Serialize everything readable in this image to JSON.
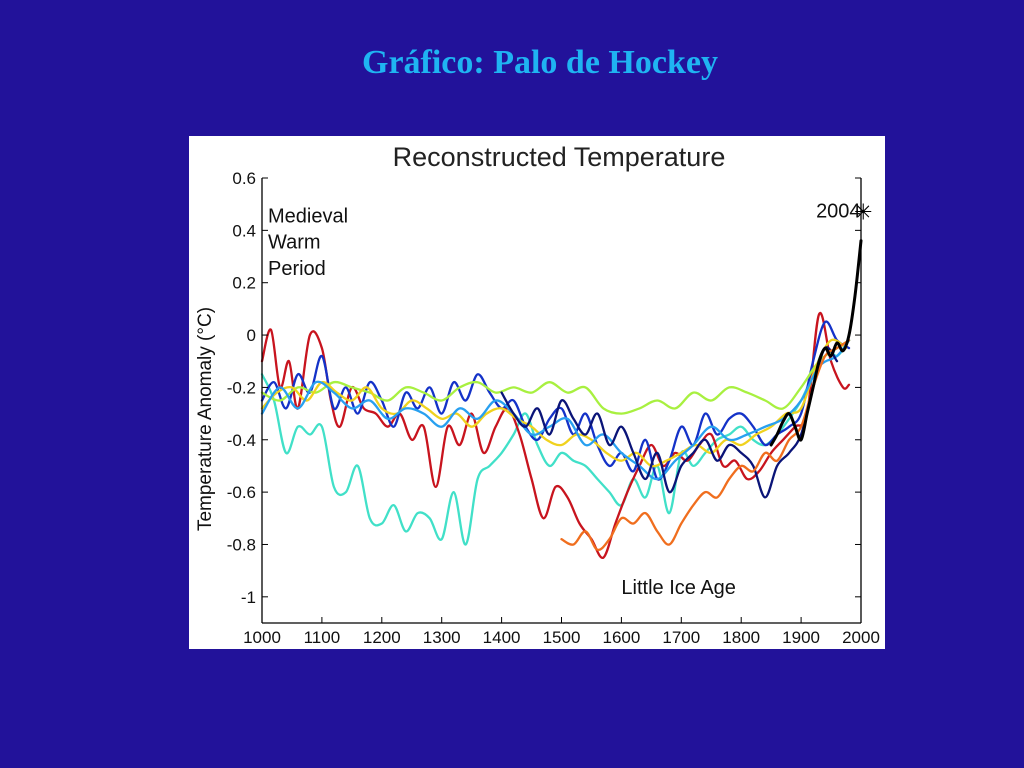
{
  "slide": {
    "title": "Gráfico: Palo de Hockey"
  },
  "chart_data": {
    "type": "line",
    "title": "Reconstructed Temperature",
    "xlabel": "",
    "ylabel": "Temperature Anomaly (°C)",
    "xlim": [
      1000,
      2000
    ],
    "ylim": [
      -1.1,
      0.6
    ],
    "xticks": [
      1000,
      1100,
      1200,
      1300,
      1400,
      1500,
      1600,
      1700,
      1800,
      1900,
      2000
    ],
    "yticks": [
      0.6,
      0.4,
      0.2,
      0,
      -0.2,
      -0.4,
      -0.6,
      -0.8,
      -1
    ],
    "grid": false,
    "annotations": [
      {
        "text": "Medieval",
        "x": 1010,
        "y": 0.43
      },
      {
        "text": "Warm",
        "x": 1010,
        "y": 0.33
      },
      {
        "text": "Period",
        "x": 1010,
        "y": 0.23
      },
      {
        "text": "Little Ice Age",
        "x": 1600,
        "y": -0.99
      },
      {
        "text": "2004",
        "x": 1925,
        "y": 0.45
      }
    ],
    "marker": {
      "symbol": "✳",
      "x": 2004,
      "y": 0.45
    },
    "series": [
      {
        "color": "#41e0c8",
        "x": [
          1000,
          1020,
          1040,
          1060,
          1080,
          1100,
          1120,
          1140,
          1160,
          1180,
          1200,
          1220,
          1240,
          1260,
          1280,
          1300,
          1320,
          1340,
          1360,
          1380,
          1400,
          1420,
          1440,
          1460,
          1480,
          1500,
          1520,
          1540,
          1560,
          1580,
          1600,
          1620,
          1640,
          1660,
          1680,
          1700,
          1720,
          1740,
          1760,
          1780,
          1800,
          1820,
          1840,
          1860,
          1880,
          1900,
          1920,
          1940,
          1960,
          1980
        ],
        "y": [
          -0.15,
          -0.25,
          -0.45,
          -0.35,
          -0.38,
          -0.35,
          -0.58,
          -0.6,
          -0.5,
          -0.7,
          -0.72,
          -0.65,
          -0.75,
          -0.68,
          -0.7,
          -0.78,
          -0.6,
          -0.8,
          -0.55,
          -0.5,
          -0.45,
          -0.38,
          -0.3,
          -0.42,
          -0.5,
          -0.45,
          -0.48,
          -0.5,
          -0.55,
          -0.6,
          -0.65,
          -0.55,
          -0.62,
          -0.5,
          -0.68,
          -0.45,
          -0.5,
          -0.45,
          -0.4,
          -0.38,
          -0.35,
          -0.4,
          -0.42,
          -0.38,
          -0.32,
          -0.25,
          -0.15,
          -0.05,
          -0.08,
          -0.02
        ]
      },
      {
        "color": "#c8141e",
        "x": [
          1000,
          1015,
          1030,
          1045,
          1060,
          1080,
          1100,
          1115,
          1130,
          1150,
          1170,
          1190,
          1210,
          1230,
          1250,
          1270,
          1290,
          1310,
          1330,
          1350,
          1370,
          1390,
          1410,
          1430,
          1450,
          1470,
          1490,
          1510,
          1530,
          1550,
          1570,
          1590,
          1610,
          1630,
          1650,
          1670,
          1690,
          1710,
          1730,
          1750,
          1770,
          1790,
          1810,
          1830,
          1850,
          1870,
          1890,
          1910,
          1930,
          1950,
          1970,
          1980
        ],
        "y": [
          -0.1,
          0.02,
          -0.2,
          -0.1,
          -0.28,
          0.0,
          -0.05,
          -0.25,
          -0.35,
          -0.2,
          -0.28,
          -0.3,
          -0.35,
          -0.3,
          -0.4,
          -0.35,
          -0.58,
          -0.35,
          -0.42,
          -0.3,
          -0.45,
          -0.35,
          -0.28,
          -0.38,
          -0.55,
          -0.7,
          -0.58,
          -0.62,
          -0.72,
          -0.78,
          -0.85,
          -0.72,
          -0.6,
          -0.5,
          -0.42,
          -0.5,
          -0.45,
          -0.48,
          -0.42,
          -0.38,
          -0.5,
          -0.48,
          -0.55,
          -0.52,
          -0.45,
          -0.4,
          -0.35,
          -0.3,
          0.08,
          -0.1,
          -0.2,
          -0.19
        ]
      },
      {
        "color": "#1432c8",
        "x": [
          1000,
          1020,
          1040,
          1060,
          1080,
          1100,
          1120,
          1140,
          1160,
          1180,
          1200,
          1220,
          1240,
          1260,
          1280,
          1300,
          1320,
          1340,
          1360,
          1380,
          1400,
          1420,
          1440,
          1460,
          1480,
          1500,
          1520,
          1540,
          1560,
          1580,
          1600,
          1620,
          1640,
          1660,
          1680,
          1700,
          1720,
          1740,
          1760,
          1780,
          1800,
          1820,
          1840,
          1860,
          1880,
          1900,
          1920,
          1940,
          1960,
          1980
        ],
        "y": [
          -0.25,
          -0.18,
          -0.28,
          -0.15,
          -0.22,
          -0.08,
          -0.28,
          -0.2,
          -0.3,
          -0.18,
          -0.25,
          -0.35,
          -0.22,
          -0.28,
          -0.2,
          -0.3,
          -0.18,
          -0.25,
          -0.15,
          -0.22,
          -0.28,
          -0.25,
          -0.35,
          -0.4,
          -0.32,
          -0.28,
          -0.38,
          -0.3,
          -0.42,
          -0.5,
          -0.45,
          -0.52,
          -0.4,
          -0.55,
          -0.48,
          -0.35,
          -0.42,
          -0.3,
          -0.38,
          -0.32,
          -0.3,
          -0.35,
          -0.42,
          -0.38,
          -0.35,
          -0.3,
          -0.1,
          0.05,
          -0.02,
          -0.05
        ]
      },
      {
        "color": "#a8f040",
        "x": [
          1000,
          1030,
          1060,
          1090,
          1120,
          1150,
          1180,
          1210,
          1240,
          1270,
          1300,
          1330,
          1360,
          1390,
          1420,
          1450,
          1480,
          1510,
          1540,
          1570,
          1600,
          1630,
          1660,
          1690,
          1720,
          1750,
          1780,
          1810,
          1840,
          1870,
          1900,
          1930,
          1960,
          1980
        ],
        "y": [
          -0.22,
          -0.25,
          -0.2,
          -0.22,
          -0.18,
          -0.2,
          -0.22,
          -0.25,
          -0.2,
          -0.22,
          -0.25,
          -0.2,
          -0.18,
          -0.22,
          -0.2,
          -0.22,
          -0.18,
          -0.22,
          -0.2,
          -0.28,
          -0.3,
          -0.28,
          -0.25,
          -0.28,
          -0.22,
          -0.25,
          -0.2,
          -0.22,
          -0.25,
          -0.28,
          -0.2,
          -0.1,
          -0.05,
          -0.02
        ]
      },
      {
        "color": "#f0d21e",
        "x": [
          1000,
          1025,
          1050,
          1075,
          1100,
          1125,
          1150,
          1175,
          1200,
          1225,
          1250,
          1275,
          1300,
          1325,
          1350,
          1375,
          1400,
          1425,
          1450,
          1475,
          1500,
          1525,
          1550,
          1575,
          1600,
          1625,
          1650,
          1675,
          1700,
          1725,
          1750,
          1775,
          1800,
          1825,
          1850,
          1875,
          1900,
          1925,
          1950,
          1975
        ],
        "y": [
          -0.28,
          -0.22,
          -0.2,
          -0.25,
          -0.18,
          -0.22,
          -0.25,
          -0.2,
          -0.28,
          -0.3,
          -0.25,
          -0.28,
          -0.32,
          -0.3,
          -0.35,
          -0.3,
          -0.28,
          -0.32,
          -0.35,
          -0.4,
          -0.42,
          -0.38,
          -0.4,
          -0.45,
          -0.48,
          -0.45,
          -0.5,
          -0.48,
          -0.45,
          -0.42,
          -0.45,
          -0.4,
          -0.42,
          -0.38,
          -0.35,
          -0.3,
          -0.28,
          -0.12,
          -0.02,
          -0.05
        ]
      },
      {
        "color": "#28a0f0",
        "x": [
          1000,
          1030,
          1060,
          1090,
          1120,
          1150,
          1180,
          1210,
          1240,
          1270,
          1300,
          1330,
          1360,
          1390,
          1420,
          1450,
          1480,
          1510,
          1540,
          1570,
          1600,
          1630,
          1660,
          1690,
          1720,
          1750,
          1780,
          1810,
          1840,
          1870,
          1900,
          1930,
          1960,
          1980
        ],
        "y": [
          -0.3,
          -0.2,
          -0.28,
          -0.18,
          -0.22,
          -0.28,
          -0.25,
          -0.32,
          -0.28,
          -0.3,
          -0.35,
          -0.28,
          -0.32,
          -0.25,
          -0.3,
          -0.38,
          -0.35,
          -0.32,
          -0.42,
          -0.38,
          -0.45,
          -0.5,
          -0.55,
          -0.48,
          -0.42,
          -0.35,
          -0.4,
          -0.38,
          -0.35,
          -0.32,
          -0.25,
          -0.12,
          -0.08,
          -0.02
        ]
      },
      {
        "color": "#0a1478",
        "x": [
          1400,
          1420,
          1440,
          1460,
          1480,
          1500,
          1520,
          1540,
          1560,
          1580,
          1600,
          1620,
          1640,
          1660,
          1680,
          1700,
          1720,
          1740,
          1760,
          1780,
          1800,
          1820,
          1840,
          1860,
          1880,
          1900,
          1920,
          1940,
          1960
        ],
        "y": [
          -0.22,
          -0.3,
          -0.35,
          -0.28,
          -0.38,
          -0.25,
          -0.32,
          -0.38,
          -0.3,
          -0.42,
          -0.35,
          -0.45,
          -0.55,
          -0.45,
          -0.6,
          -0.5,
          -0.45,
          -0.4,
          -0.48,
          -0.42,
          -0.45,
          -0.5,
          -0.62,
          -0.5,
          -0.45,
          -0.38,
          -0.2,
          -0.05,
          -0.1
        ]
      },
      {
        "color": "#f06e1e",
        "x": [
          1500,
          1520,
          1540,
          1560,
          1580,
          1600,
          1620,
          1640,
          1660,
          1680,
          1700,
          1720,
          1740,
          1760,
          1780,
          1800,
          1820,
          1840,
          1860,
          1880,
          1900,
          1920,
          1940,
          1960,
          1980
        ],
        "y": [
          -0.78,
          -0.8,
          -0.75,
          -0.82,
          -0.78,
          -0.7,
          -0.72,
          -0.68,
          -0.75,
          -0.8,
          -0.72,
          -0.65,
          -0.6,
          -0.62,
          -0.55,
          -0.5,
          -0.52,
          -0.45,
          -0.48,
          -0.4,
          -0.35,
          -0.2,
          -0.08,
          -0.05,
          -0.02
        ]
      },
      {
        "color": "#000000",
        "x": [
          1850,
          1860,
          1870,
          1880,
          1890,
          1900,
          1910,
          1920,
          1930,
          1940,
          1950,
          1960,
          1970,
          1980,
          1990,
          2000
        ],
        "y": [
          -0.42,
          -0.38,
          -0.33,
          -0.3,
          -0.35,
          -0.4,
          -0.3,
          -0.2,
          -0.1,
          -0.05,
          -0.08,
          -0.03,
          -0.06,
          0.0,
          0.15,
          0.36
        ]
      }
    ]
  }
}
